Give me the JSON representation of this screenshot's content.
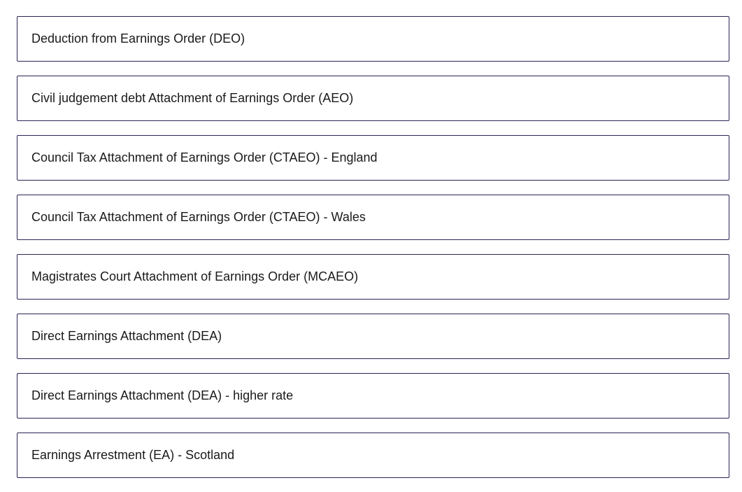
{
  "options": [
    {
      "label": "Deduction from Earnings Order (DEO)"
    },
    {
      "label": "Civil judgement debt Attachment of Earnings Order (AEO)"
    },
    {
      "label": "Council Tax Attachment of Earnings Order (CTAEO) - England"
    },
    {
      "label": "Council Tax Attachment of Earnings Order (CTAEO) - Wales"
    },
    {
      "label": "Magistrates Court Attachment of Earnings Order (MCAEO)"
    },
    {
      "label": "Direct Earnings Attachment (DEA)"
    },
    {
      "label": "Direct Earnings Attachment (DEA) - higher rate"
    },
    {
      "label": "Earnings Arrestment (EA) - Scotland"
    }
  ]
}
